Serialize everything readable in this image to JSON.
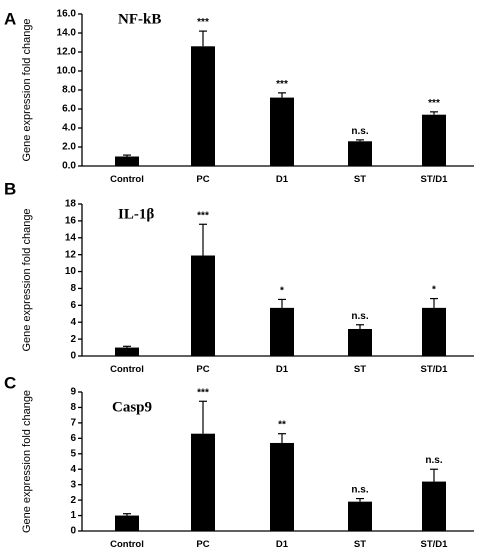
{
  "chart_data": [
    {
      "type": "bar",
      "panel": "A",
      "title": "NF-kB",
      "ylabel": "Gene expression fold change",
      "categories": [
        "Control",
        "PC",
        "D1",
        "ST",
        "ST/D1"
      ],
      "values": [
        1.0,
        12.6,
        7.2,
        2.6,
        5.4
      ],
      "errors": [
        0.15,
        1.6,
        0.5,
        0.15,
        0.3
      ],
      "significance": [
        "",
        "***",
        "***",
        "n.s.",
        "***"
      ],
      "ylim": [
        0,
        16
      ],
      "yticks": [
        "0.0",
        "2.0",
        "4.0",
        "6.0",
        "8.0",
        "10.0",
        "12.0",
        "14.0",
        "16.0"
      ]
    },
    {
      "type": "bar",
      "panel": "B",
      "title": "IL-1β",
      "ylabel": "Gene expression fold change",
      "categories": [
        "Control",
        "PC",
        "D1",
        "ST",
        "ST/D1"
      ],
      "values": [
        1.0,
        11.9,
        5.7,
        3.2,
        5.7
      ],
      "errors": [
        0.15,
        3.7,
        1.0,
        0.5,
        1.1
      ],
      "significance": [
        "",
        "***",
        "*",
        "n.s.",
        "*"
      ],
      "ylim": [
        0,
        18
      ],
      "yticks": [
        "0",
        "2",
        "4",
        "6",
        "8",
        "10",
        "12",
        "14",
        "16",
        "18"
      ]
    },
    {
      "type": "bar",
      "panel": "C",
      "title": "Casp9",
      "ylabel": "Gene expression fold change",
      "categories": [
        "Control",
        "PC",
        "D1",
        "ST",
        "ST/D1"
      ],
      "values": [
        1.0,
        6.3,
        5.7,
        1.9,
        3.2
      ],
      "errors": [
        0.12,
        2.1,
        0.6,
        0.2,
        0.8
      ],
      "significance": [
        "",
        "***",
        "**",
        "n.s.",
        "n.s."
      ],
      "ylim": [
        0,
        9
      ],
      "yticks": [
        "0",
        "1",
        "2",
        "3",
        "4",
        "5",
        "6",
        "7",
        "8",
        "9"
      ]
    }
  ]
}
